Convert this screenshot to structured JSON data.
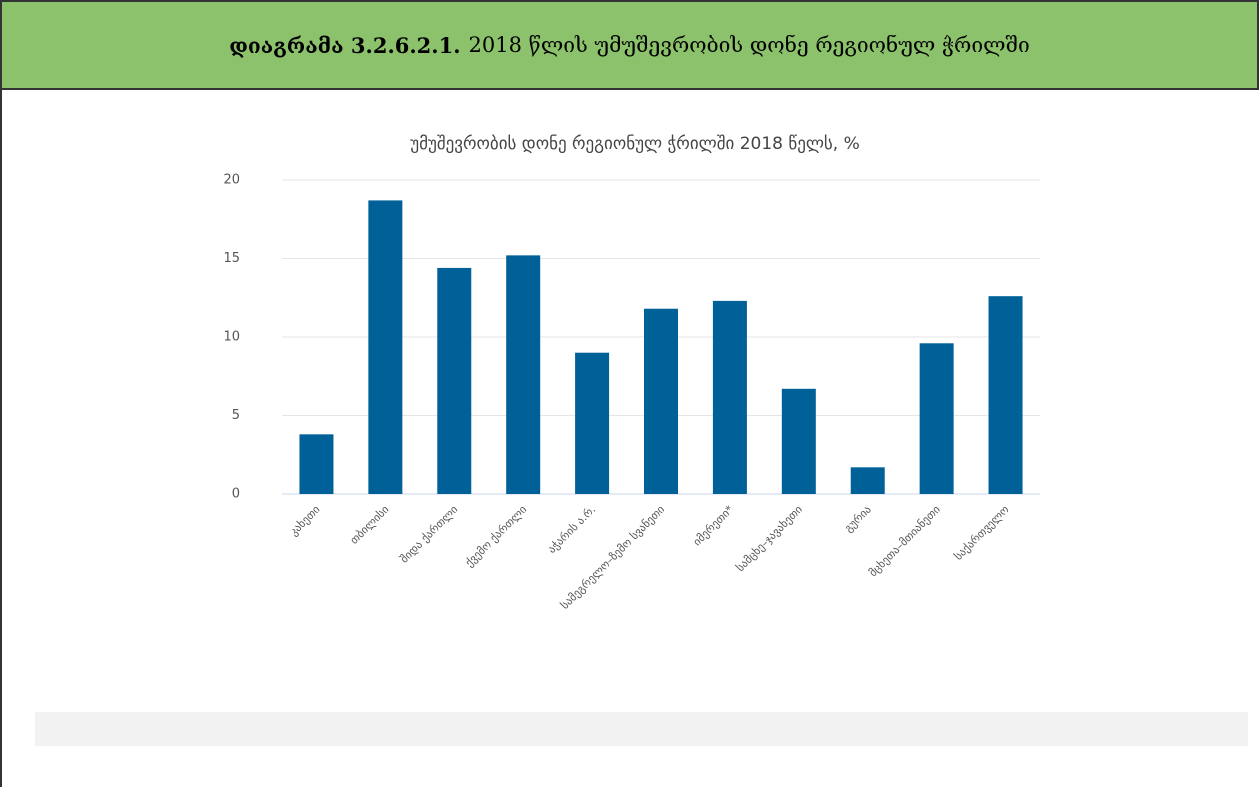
{
  "header": {
    "label": "დიაგრამა 3.2.6.2.1.",
    "title": "2018 წლის უმუშევრობის დონე რეგიონულ ჭრილში"
  },
  "chart_data": {
    "type": "bar",
    "title": "უმუშევრობის დონე რეგიონულ ჭრილში 2018 წელს, %",
    "categories": [
      "კახეთი",
      "თბილისი",
      "შიდა ქართლი",
      "ქვემო ქართლი",
      "აჭარის ა.რ.",
      "სამეგრელო–ზემო სვანეთი",
      "იმერეთი*",
      "სამცხე–ჯავახეთი",
      "გურია",
      "მცხეთა–მთიანეთი",
      "საქართველო"
    ],
    "values": [
      3.8,
      18.7,
      14.4,
      15.2,
      9.0,
      11.8,
      12.3,
      6.7,
      1.7,
      9.6,
      12.6
    ],
    "color": "#006199",
    "ylim": [
      0,
      20
    ],
    "yticks": [
      0,
      5,
      10,
      15,
      20
    ],
    "grid": true
  }
}
